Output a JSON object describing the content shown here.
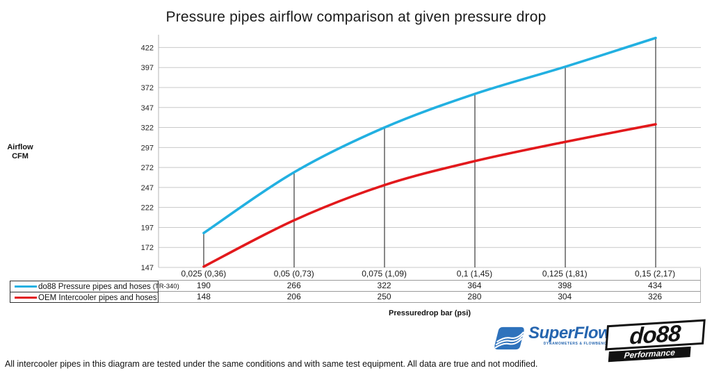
{
  "title": "Pressure pipes airflow comparison at given pressure drop",
  "y_axis": {
    "label_line1": "Airflow",
    "label_line2": "CFM"
  },
  "x_axis": {
    "label": "Pressuredrop bar (psi)"
  },
  "chart_data": {
    "type": "line",
    "title": "Pressure pipes airflow comparison at given pressure drop",
    "xlabel": "Pressuredrop bar (psi)",
    "ylabel": "Airflow CFM",
    "categories": [
      "0,025 (0,36)",
      "0,05 (0,73)",
      "0,075 (1,09)",
      "0,1 (1,45)",
      "0,125 (1,81)",
      "0,15 (2,17)"
    ],
    "series": [
      {
        "name": "do88 Pressure pipes and hoses",
        "suffix": "(TR-340)",
        "color": "#22b0e1",
        "values": [
          190,
          266,
          322,
          364,
          398,
          434
        ]
      },
      {
        "name": "OEM Intercooler pipes and hoses",
        "suffix": "",
        "color": "#e2191c",
        "values": [
          148,
          206,
          250,
          280,
          304,
          326
        ]
      }
    ],
    "yticks": [
      147,
      172,
      197,
      222,
      247,
      272,
      297,
      322,
      347,
      372,
      397,
      422
    ],
    "ylim": [
      147,
      438
    ],
    "grid": true,
    "legend_position": "table-left",
    "annotations": "vertical drop lines from do88 series points to x-axis",
    "grid_color": "#c8c8c8",
    "drop_line_color": "#3a3a3a"
  },
  "logos": {
    "superflow": {
      "name": "SuperFlow",
      "trademark": "™",
      "tagline": "DYNAMOMETERS & FLOWBENCHES"
    },
    "do88": {
      "name": "do88",
      "tagline": "Performance"
    }
  },
  "footer": {
    "note": "All intercooler pipes in this diagram are tested under the same conditions and with same test equipment. All data are true and not modified."
  }
}
